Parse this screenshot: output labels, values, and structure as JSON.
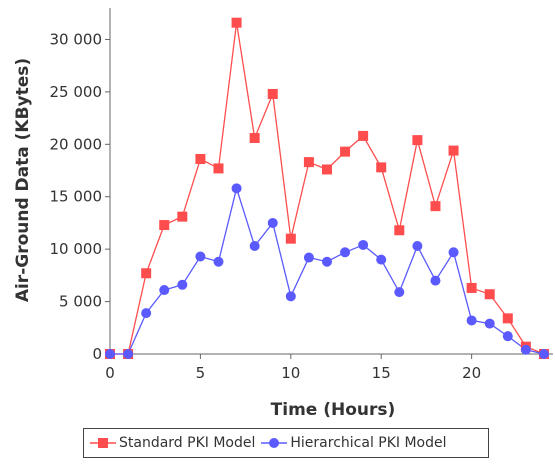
{
  "chart_data": {
    "type": "line",
    "xlabel": "Time (Hours)",
    "ylabel": "Air-Ground Data (KBytes)",
    "xlim": [
      0,
      24.5
    ],
    "ylim": [
      0,
      33000
    ],
    "x_ticks": [
      0,
      5,
      10,
      15,
      20
    ],
    "y_ticks": [
      0,
      5000,
      10000,
      15000,
      20000,
      25000,
      30000
    ],
    "x_tick_labels": [
      "0",
      "5",
      "10",
      "15",
      "20"
    ],
    "y_tick_labels": [
      "0",
      "5 000",
      "10 000",
      "15 000",
      "20 000",
      "25 000",
      "30 000"
    ],
    "grid": false,
    "legend_position": "bottom",
    "x": [
      0,
      1,
      2,
      3,
      4,
      5,
      6,
      7,
      8,
      9,
      10,
      11,
      12,
      13,
      14,
      15,
      16,
      17,
      18,
      19,
      20,
      21,
      22,
      23,
      24
    ],
    "series": [
      {
        "name": "Standard PKI Model",
        "color": "#ff4d4d",
        "marker": "square",
        "values": [
          0,
          0,
          7700,
          12300,
          13100,
          18600,
          17700,
          31600,
          20600,
          24800,
          11000,
          18300,
          17600,
          19300,
          20800,
          17800,
          11800,
          20400,
          14100,
          19400,
          6300,
          5700,
          3400,
          700,
          0
        ]
      },
      {
        "name": "Hierarchical PKI Model",
        "color": "#5a5aff",
        "marker": "circle",
        "values": [
          0,
          0,
          3900,
          6100,
          6600,
          9300,
          8800,
          15800,
          10300,
          12500,
          5500,
          9200,
          8800,
          9700,
          10400,
          9000,
          5900,
          10300,
          7000,
          9700,
          3200,
          2900,
          1700,
          400,
          0
        ]
      }
    ]
  }
}
